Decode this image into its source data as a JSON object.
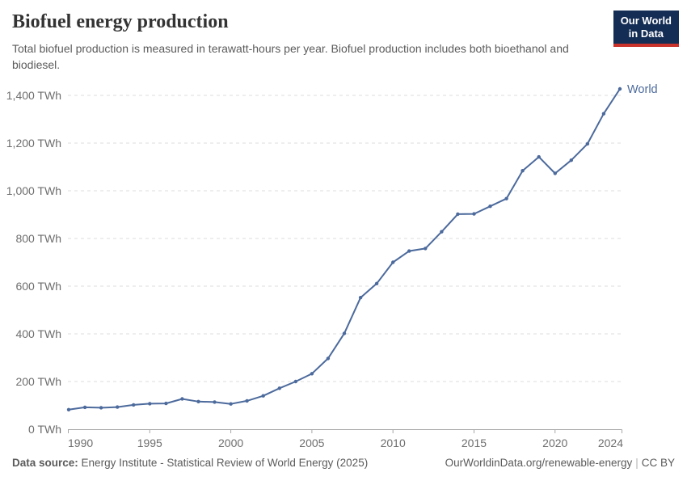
{
  "header": {
    "title": "Biofuel energy production",
    "subtitle": "Total biofuel production is measured in terawatt-hours per year. Biofuel production includes both bioethanol and biodiesel.",
    "logo": {
      "line1": "Our World",
      "line2": "in Data"
    }
  },
  "chart_data": {
    "type": "line",
    "title": "Biofuel energy production",
    "xlabel": "",
    "ylabel": "",
    "unit": "TWh",
    "x": [
      1990,
      1991,
      1992,
      1993,
      1994,
      1995,
      1996,
      1997,
      1998,
      1999,
      2000,
      2001,
      2002,
      2003,
      2004,
      2005,
      2006,
      2007,
      2008,
      2009,
      2010,
      2011,
      2012,
      2013,
      2014,
      2015,
      2016,
      2017,
      2018,
      2019,
      2020,
      2021,
      2022,
      2023,
      2024
    ],
    "series": [
      {
        "name": "World",
        "color": "#4c6a9c",
        "values": [
          82,
          92,
          90,
          93,
          102,
          107,
          108,
          127,
          116,
          114,
          106,
          119,
          140,
          172,
          200,
          233,
          297,
          402,
          552,
          611,
          700,
          747,
          758,
          828,
          902,
          903,
          935,
          967,
          1084,
          1142,
          1073,
          1128,
          1197,
          1323,
          1427
        ]
      }
    ],
    "x_ticks": [
      1990,
      1995,
      2000,
      2005,
      2010,
      2015,
      2020,
      2024
    ],
    "y_ticks": [
      0,
      200,
      400,
      600,
      800,
      1000,
      1200,
      1400
    ],
    "y_tick_suffix": " TWh",
    "xlim": [
      1990,
      2024
    ],
    "ylim": [
      0,
      1400
    ],
    "grid": "horizontal-dashed",
    "legend": "end-of-line-label"
  },
  "footer": {
    "source_label": "Data source:",
    "source_text": "Energy Institute - Statistical Review of World Energy (2025)",
    "link_text": "OurWorldinData.org/renewable-energy",
    "separator": "|",
    "license_text": "CC BY"
  },
  "colors": {
    "line": "#4c6a9c",
    "grid": "#dcdcdc",
    "axis": "#a7a7a7",
    "tick_label": "#6e6e6e",
    "title": "#333333",
    "subtitle": "#5b5b5b",
    "footer": "#5b5b5b",
    "logo_bg": "#142d55",
    "logo_accent": "#c8322a"
  }
}
